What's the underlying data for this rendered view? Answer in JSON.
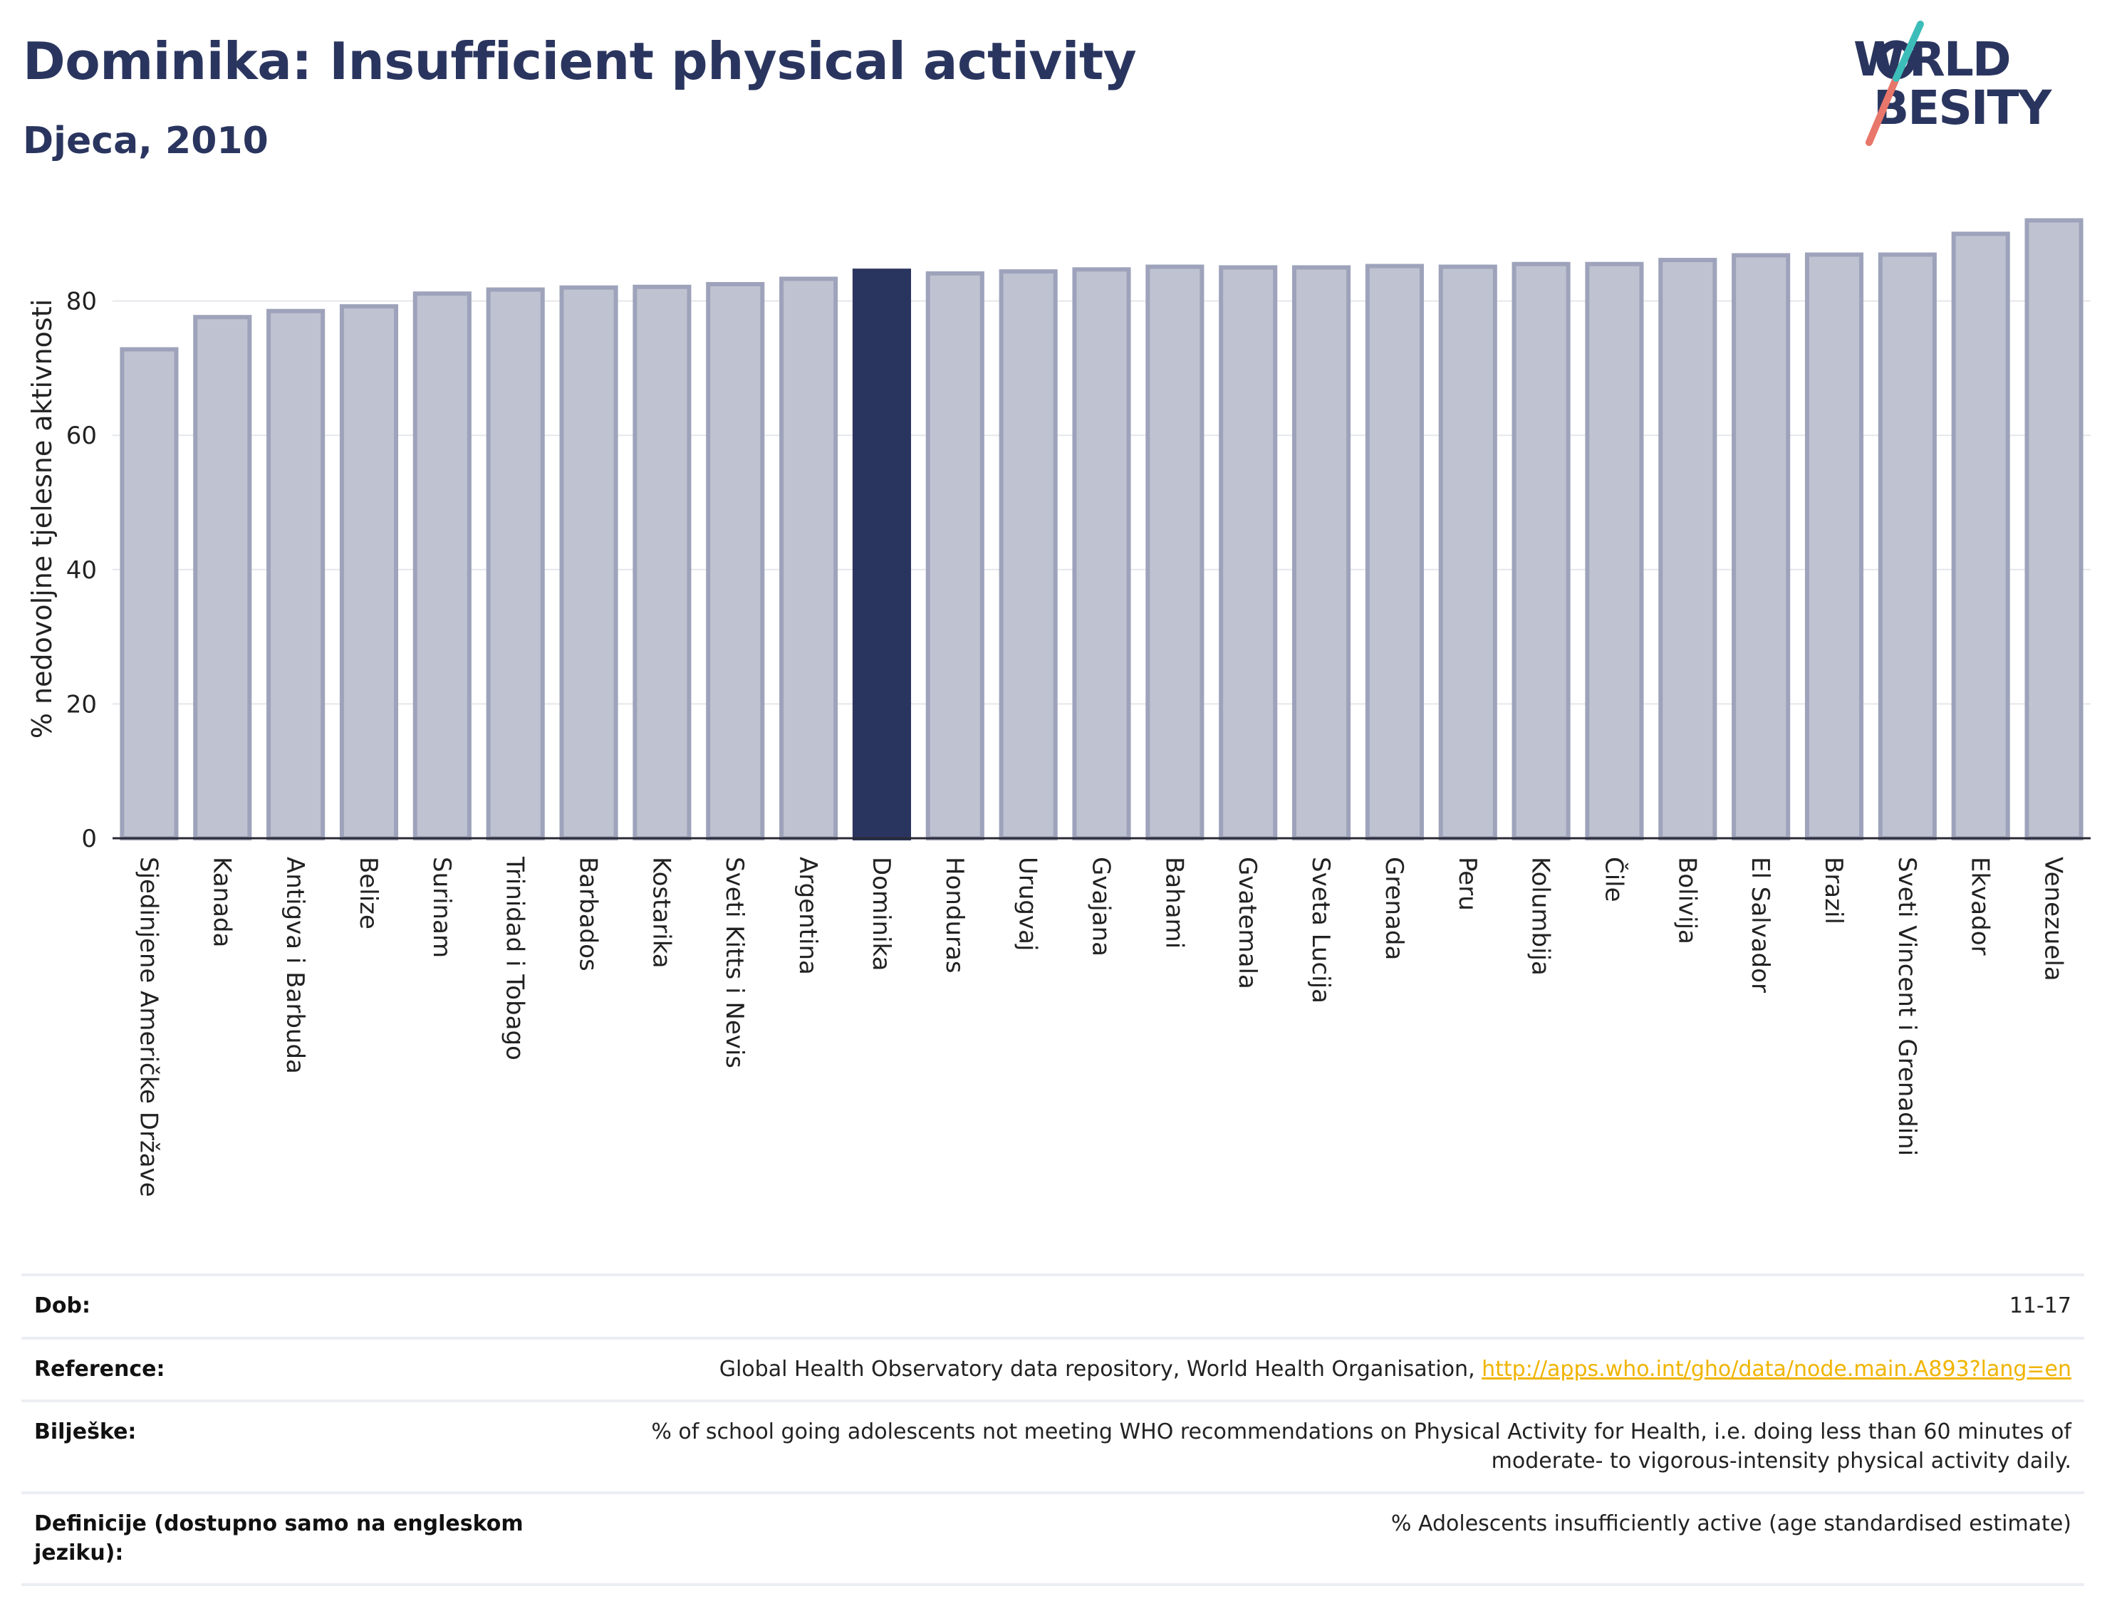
{
  "header": {
    "title": "Dominika: Insufficient physical activity",
    "subtitle": "Djeca, 2010"
  },
  "logo": {
    "line1": "WORLD",
    "line2": "OBESITY"
  },
  "colors": {
    "bar_fill": "#bfc2d0",
    "bar_stroke": "#9ea3bb",
    "highlight": "#2a355f",
    "title": "#2a355f",
    "link": "#f0b400"
  },
  "chart_data": {
    "type": "bar",
    "title": "",
    "xlabel": "",
    "ylabel": "% nedovoljne tjelesne aktivnosti",
    "ylim": [
      0,
      93
    ],
    "yticks": [
      0,
      20,
      40,
      60,
      80
    ],
    "grid": true,
    "highlight": "Dominika",
    "categories": [
      "Sjedinjene Američke Države",
      "Kanada",
      "Antigva i Barbuda",
      "Belize",
      "Surinam",
      "Trinidad i Tobago",
      "Barbados",
      "Kostarika",
      "Sveti Kitts i Nevis",
      "Argentina",
      "Dominika",
      "Honduras",
      "Urugvaj",
      "Gvajana",
      "Bahami",
      "Gvatemala",
      "Sveta Lucija",
      "Grenada",
      "Peru",
      "Kolumbija",
      "Čile",
      "Bolivija",
      "El Salvador",
      "Brazil",
      "Sveti Vincent i Grenadini",
      "Ekvador",
      "Venezuela"
    ],
    "values": [
      72.8,
      77.6,
      78.5,
      79.2,
      81.1,
      81.7,
      82.0,
      82.1,
      82.5,
      83.3,
      84.5,
      84.1,
      84.4,
      84.7,
      85.1,
      85.0,
      85.0,
      85.2,
      85.1,
      85.5,
      85.5,
      86.1,
      86.8,
      86.9,
      86.9,
      90.0,
      92.0
    ]
  },
  "meta": {
    "rows": [
      {
        "key": "Dob:",
        "value": "11-17"
      },
      {
        "key": "Reference:",
        "value": "Global Health Observatory data repository, World Health Organisation, ",
        "link": "http://apps.who.int/gho/data/node.main.A893?lang=en"
      },
      {
        "key": "Bilješke:",
        "value": "% of school going adolescents not meeting WHO recommendations on Physical Activity for Health, i.e. doing less than 60 minutes of moderate- to vigorous-intensity physical activity daily."
      },
      {
        "key": "Definicije (dostupno samo na engleskom jeziku):",
        "value": "% Adolescents insufficiently active (age standardised estimate)"
      }
    ]
  }
}
